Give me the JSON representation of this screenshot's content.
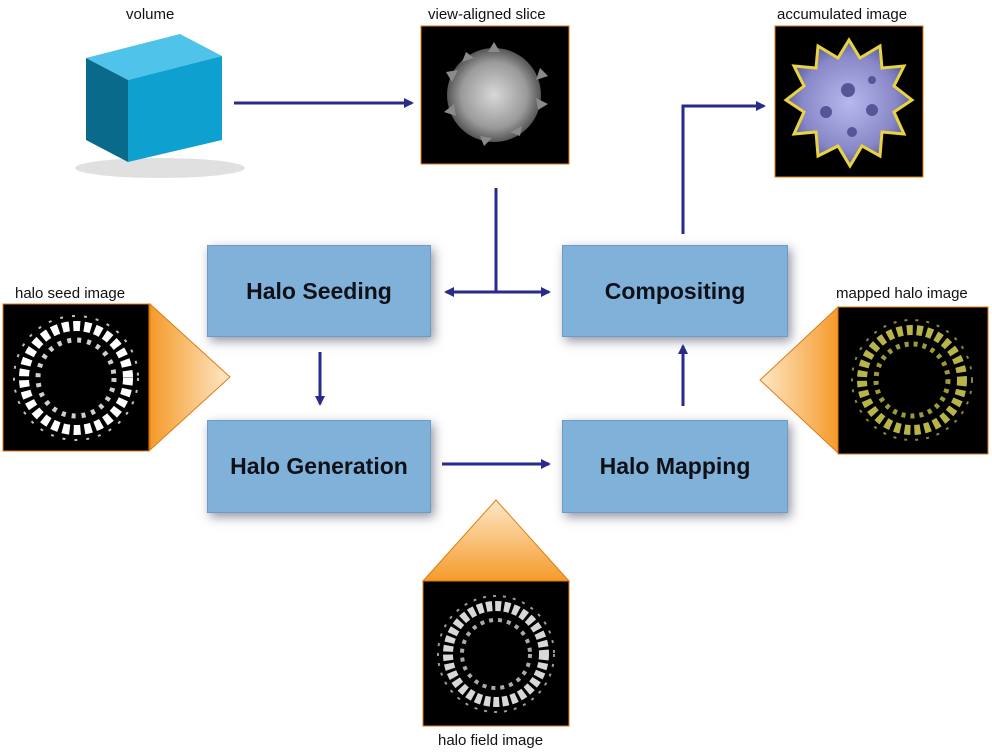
{
  "labels": {
    "volume": "volume",
    "view_aligned_slice": "view-aligned slice",
    "accumulated_image": "accumulated image",
    "halo_seed_image": "halo seed image",
    "mapped_halo_image": "mapped halo image",
    "halo_field_image": "halo field image"
  },
  "stages": {
    "halo_seeding": "Halo Seeding",
    "compositing": "Compositing",
    "halo_generation": "Halo Generation",
    "halo_mapping": "Halo Mapping"
  },
  "colors": {
    "arrow": "#2a2a8a",
    "box_fill": "#7fb1d9",
    "triangle": "#f5a030"
  }
}
